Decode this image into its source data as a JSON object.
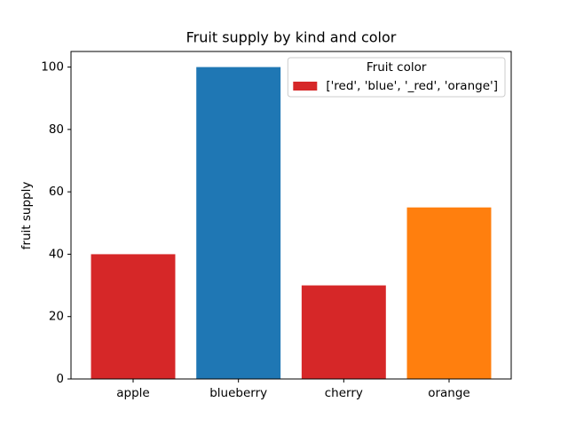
{
  "chart_data": {
    "type": "bar",
    "title": "Fruit supply by kind and color",
    "ylabel": "fruit supply",
    "categories": [
      "apple",
      "blueberry",
      "cherry",
      "orange"
    ],
    "values": [
      40,
      100,
      30,
      55
    ],
    "colors": [
      "#d62728",
      "#1f77b4",
      "#d62728",
      "#ff7f0e"
    ],
    "ylim": [
      0,
      105
    ],
    "yticks": [
      0,
      20,
      40,
      60,
      80,
      100
    ],
    "grid": false,
    "legend": {
      "title": "Fruit color",
      "loc": "upper right",
      "entries": [
        {
          "label": "['red', 'blue', '_red', 'orange']",
          "color": "#d62728"
        }
      ]
    }
  }
}
